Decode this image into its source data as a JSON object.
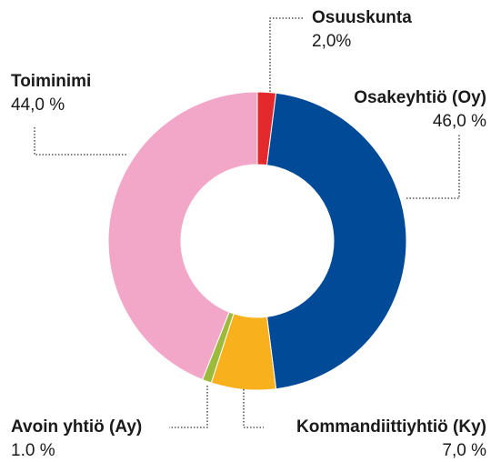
{
  "chart_data": {
    "type": "donut",
    "categories": [
      "Osuuskunta",
      "Osakeyhtiö (Oy)",
      "Kommandiittiyhtiö (Ky)",
      "Avoin yhtiö (Ay)",
      "Toiminimi"
    ],
    "values": [
      2.0,
      46.0,
      7.0,
      1.0,
      44.0
    ],
    "value_labels": [
      "2,0%",
      "46,0 %",
      "7,0 %",
      "1.0 %",
      "44,0 %"
    ],
    "colors": [
      "#e3292b",
      "#004a98",
      "#f8b11c",
      "#9cbb3c",
      "#f2a6c8"
    ]
  }
}
